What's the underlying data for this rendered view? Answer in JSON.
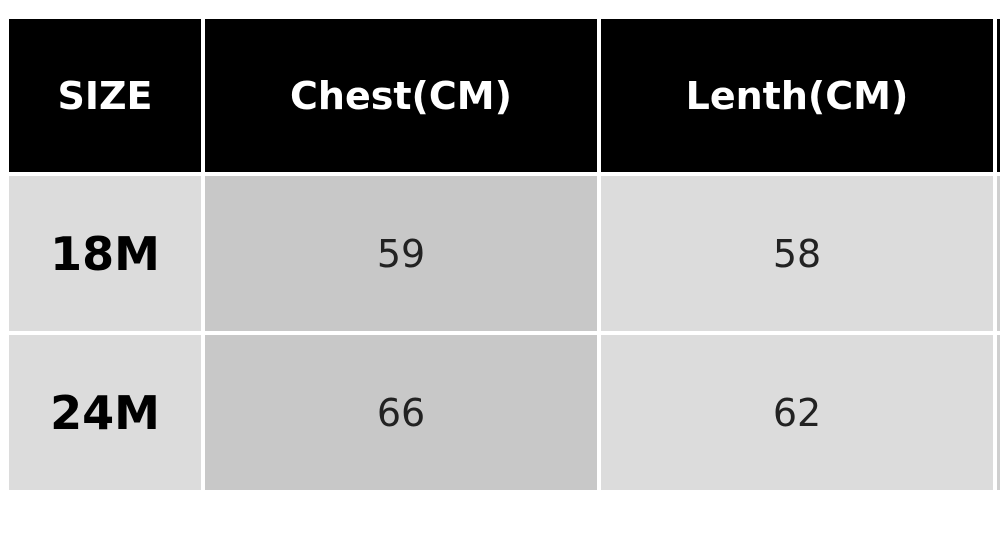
{
  "table": {
    "headers": [
      "SIZE",
      "Chest(CM)",
      "Lenth(CM)"
    ],
    "rows": [
      {
        "size": "18M",
        "chest": "59",
        "length": "58"
      },
      {
        "size": "24M",
        "chest": "66",
        "length": "62"
      }
    ]
  },
  "colors": {
    "header_bg": "#000000",
    "header_text": "#ffffff",
    "cell_light": "#dcdcdc",
    "cell_dark": "#c8c8c8"
  }
}
